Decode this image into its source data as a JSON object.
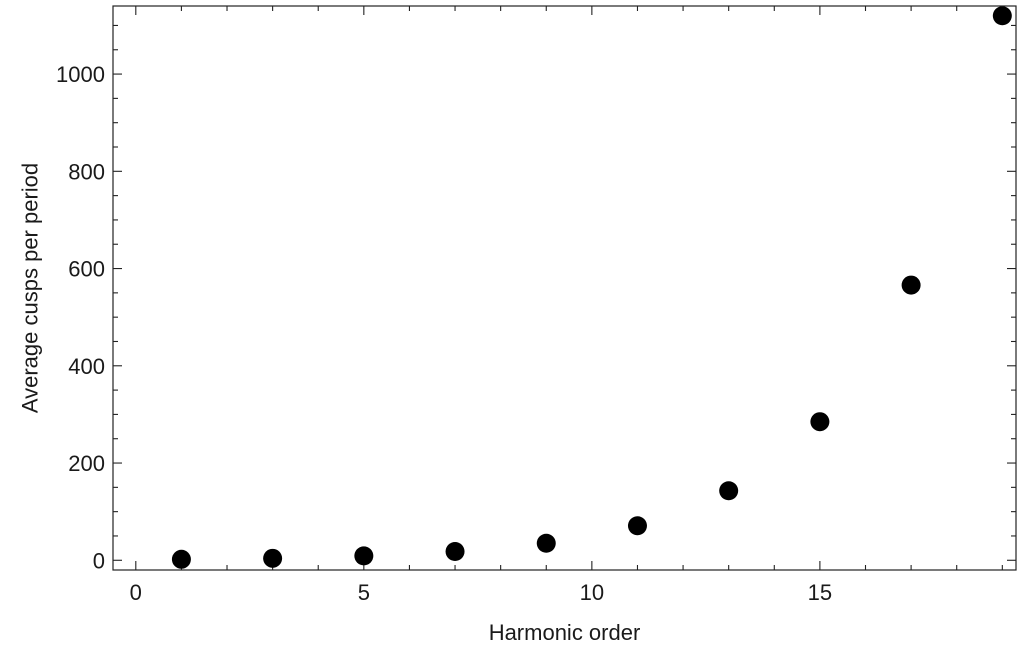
{
  "chart_data": {
    "type": "scatter",
    "title": "",
    "xlabel": "Harmonic order",
    "ylabel": "Average cusps per period",
    "xlim": [
      -0.5,
      19.3
    ],
    "ylim": [
      -20,
      1140
    ],
    "x_ticks": [
      0,
      5,
      10,
      15
    ],
    "y_ticks": [
      0,
      200,
      400,
      600,
      800,
      1000
    ],
    "x_tick_labels": [
      "0",
      "5",
      "10",
      "15"
    ],
    "y_tick_labels": [
      "0",
      "200",
      "400",
      "600",
      "800",
      "1000"
    ],
    "grid": false,
    "legend": "none",
    "marker_color": "#000000",
    "series": [
      {
        "x": [
          1,
          3,
          5,
          7,
          9,
          11,
          13,
          15,
          17,
          19
        ],
        "y": [
          2,
          4,
          9,
          18,
          35,
          71,
          143,
          285,
          566,
          1120
        ]
      }
    ]
  }
}
